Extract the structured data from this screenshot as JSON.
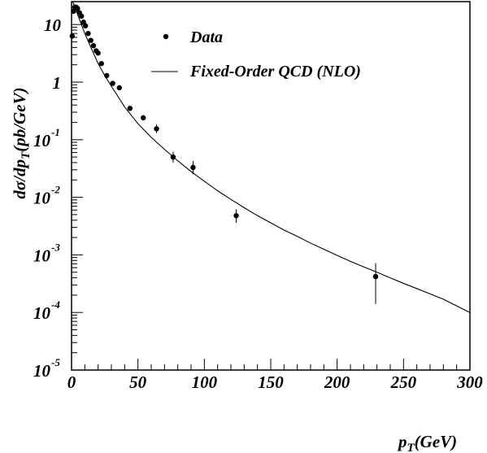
{
  "chart_data": {
    "type": "scatter",
    "xlabel": "p_T(GeV)",
    "ylabel": "dσ/dp_T(pb/GeV)",
    "xlim": [
      0,
      300
    ],
    "ylim": [
      1e-05,
      25
    ],
    "yscale": "log",
    "grid": false,
    "legend_position": "top-right",
    "x_ticks": [
      {
        "value": 0,
        "label": "0"
      },
      {
        "value": 50,
        "label": "50"
      },
      {
        "value": 100,
        "label": "100"
      },
      {
        "value": 150,
        "label": "150"
      },
      {
        "value": 200,
        "label": "200"
      },
      {
        "value": 250,
        "label": "250"
      },
      {
        "value": 300,
        "label": "300"
      }
    ],
    "y_ticks": [
      {
        "value": 10,
        "base": "10",
        "exp": ""
      },
      {
        "value": 1,
        "base": "1",
        "exp": ""
      },
      {
        "value": 0.1,
        "base": "10",
        "exp": "-1"
      },
      {
        "value": 0.01,
        "base": "10",
        "exp": "-2"
      },
      {
        "value": 0.001,
        "base": "10",
        "exp": "-3"
      },
      {
        "value": 0.0001,
        "base": "10",
        "exp": "-4"
      },
      {
        "value": 1e-05,
        "base": "10",
        "exp": "-5"
      }
    ],
    "series": [
      {
        "name": "Data",
        "kind": "points",
        "color": "#000000",
        "points": [
          {
            "x": 0.5,
            "y": 6.3
          },
          {
            "x": 1.5,
            "y": 17
          },
          {
            "x": 2.5,
            "y": 20
          },
          {
            "x": 3.5,
            "y": 20
          },
          {
            "x": 4.5,
            "y": 19
          },
          {
            "x": 6,
            "y": 16
          },
          {
            "x": 7.5,
            "y": 14
          },
          {
            "x": 9,
            "y": 11
          },
          {
            "x": 10.5,
            "y": 9.5
          },
          {
            "x": 12.5,
            "y": 7
          },
          {
            "x": 14.5,
            "y": 5.3
          },
          {
            "x": 16.5,
            "y": 4.3
          },
          {
            "x": 18.5,
            "y": 3.5
          },
          {
            "x": 20,
            "y": 3.2
          },
          {
            "x": 22.5,
            "y": 2.1
          },
          {
            "x": 26.5,
            "y": 1.3
          },
          {
            "x": 31,
            "y": 0.95
          },
          {
            "x": 36,
            "y": 0.8
          },
          {
            "x": 44,
            "y": 0.35
          },
          {
            "x": 54,
            "y": 0.24
          },
          {
            "x": 64,
            "y": 0.155,
            "err": [
              0.13,
              0.185
            ]
          },
          {
            "x": 76.5,
            "y": 0.05,
            "err": [
              0.04,
              0.062
            ]
          },
          {
            "x": 91.5,
            "y": 0.033,
            "err": [
              0.025,
              0.043
            ]
          },
          {
            "x": 124,
            "y": 0.0048,
            "err": [
              0.0036,
              0.0062
            ]
          },
          {
            "x": 229,
            "y": 0.00042,
            "err": [
              0.00014,
              0.00072
            ]
          }
        ]
      },
      {
        "name": "Fixed-Order QCD (NLO)",
        "kind": "line",
        "color": "#000000",
        "points": [
          {
            "x": 1,
            "y": 25
          },
          {
            "x": 5,
            "y": 14
          },
          {
            "x": 10,
            "y": 7
          },
          {
            "x": 15,
            "y": 3.8
          },
          {
            "x": 20,
            "y": 2.1
          },
          {
            "x": 25,
            "y": 1.3
          },
          {
            "x": 30,
            "y": 0.85
          },
          {
            "x": 40,
            "y": 0.37
          },
          {
            "x": 50,
            "y": 0.19
          },
          {
            "x": 60,
            "y": 0.11
          },
          {
            "x": 70,
            "y": 0.068
          },
          {
            "x": 80,
            "y": 0.043
          },
          {
            "x": 90,
            "y": 0.028
          },
          {
            "x": 100,
            "y": 0.019
          },
          {
            "x": 110,
            "y": 0.013
          },
          {
            "x": 120,
            "y": 0.0092
          },
          {
            "x": 130,
            "y": 0.0066
          },
          {
            "x": 140,
            "y": 0.0048
          },
          {
            "x": 150,
            "y": 0.0036
          },
          {
            "x": 160,
            "y": 0.0027
          },
          {
            "x": 170,
            "y": 0.0021
          },
          {
            "x": 180,
            "y": 0.0016
          },
          {
            "x": 190,
            "y": 0.00125
          },
          {
            "x": 200,
            "y": 0.00098
          },
          {
            "x": 210,
            "y": 0.00077
          },
          {
            "x": 220,
            "y": 0.00062
          },
          {
            "x": 230,
            "y": 0.0005
          },
          {
            "x": 240,
            "y": 0.0004
          },
          {
            "x": 250,
            "y": 0.00032
          },
          {
            "x": 260,
            "y": 0.00026
          },
          {
            "x": 270,
            "y": 0.00021
          },
          {
            "x": 280,
            "y": 0.00017
          },
          {
            "x": 290,
            "y": 0.00013
          },
          {
            "x": 300,
            "y": 0.0001
          }
        ]
      }
    ],
    "legend": [
      {
        "label": "Data",
        "symbol": "point"
      },
      {
        "label": "Fixed-Order QCD (NLO)",
        "symbol": "line"
      }
    ]
  }
}
